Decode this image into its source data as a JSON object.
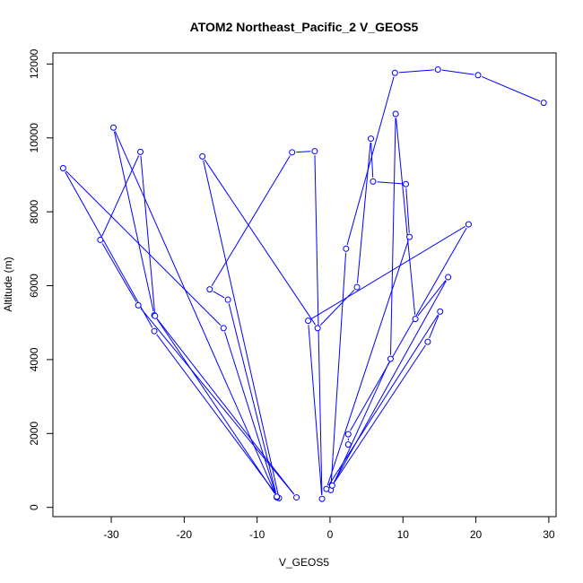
{
  "chart_data": {
    "type": "line",
    "title": "ATOM2 Northeast_Pacific_2 V_GEOS5",
    "xlabel": "V_GEOS5",
    "ylabel": "Altitude (m)",
    "xlim": [
      -38,
      31
    ],
    "ylim": [
      -250,
      12300
    ],
    "xticks": [
      -30,
      -20,
      -10,
      0,
      10,
      20,
      30
    ],
    "yticks": [
      0,
      2000,
      4000,
      6000,
      8000,
      10000,
      12000
    ],
    "xtick_labels": [
      "-30",
      "-20",
      "-10",
      "0",
      "10",
      "20",
      "30"
    ],
    "ytick_labels": [
      "0",
      "2000",
      "4000",
      "6000",
      "8000",
      "10000",
      "12000"
    ],
    "colors": {
      "series": "#0000ff",
      "marker_fill": "#ffffff"
    },
    "grid": false,
    "series": [
      {
        "points": [
          {
            "x": 29.3,
            "y": 10950
          },
          {
            "x": 20.3,
            "y": 11700
          },
          {
            "x": 14.8,
            "y": 11850
          },
          {
            "x": 8.9,
            "y": 11760
          },
          {
            "x": 2.2,
            "y": 7000
          },
          {
            "x": 0.1,
            "y": 470
          },
          {
            "x": 8.3,
            "y": 4020
          },
          {
            "x": 9.0,
            "y": 10650
          },
          {
            "x": 11.7,
            "y": 5100
          },
          {
            "x": 16.2,
            "y": 6230
          },
          {
            "x": 0.3,
            "y": 590
          },
          {
            "x": 13.4,
            "y": 4480
          },
          {
            "x": 15.1,
            "y": 5300
          },
          {
            "x": -0.5,
            "y": 500
          },
          {
            "x": 10.9,
            "y": 7320
          },
          {
            "x": 10.4,
            "y": 8750
          },
          {
            "x": 5.9,
            "y": 8820
          },
          {
            "x": 5.6,
            "y": 9980
          },
          {
            "x": 3.7,
            "y": 5960
          },
          {
            "x": -1.7,
            "y": 4850
          },
          {
            "x": -17.5,
            "y": 9500
          },
          {
            "x": -7.0,
            "y": 250
          },
          {
            "x": -24.1,
            "y": 4770
          },
          {
            "x": -36.6,
            "y": 9180
          },
          {
            "x": -14.6,
            "y": 4850
          },
          {
            "x": -7.3,
            "y": 270
          },
          {
            "x": -29.7,
            "y": 10280
          },
          {
            "x": -24.1,
            "y": 5200
          },
          {
            "x": -4.6,
            "y": 270
          },
          {
            "x": -26.3,
            "y": 5470
          },
          {
            "x": -31.5,
            "y": 7240
          },
          {
            "x": -26.0,
            "y": 9620
          },
          {
            "x": -24.0,
            "y": 5180
          },
          {
            "x": -7.3,
            "y": 290
          },
          {
            "x": -14.0,
            "y": 5620
          },
          {
            "x": -16.5,
            "y": 5900
          },
          {
            "x": -5.2,
            "y": 9610
          },
          {
            "x": -2.1,
            "y": 9640
          },
          {
            "x": -1.1,
            "y": 230
          },
          {
            "x": -3.0,
            "y": 5050
          },
          {
            "x": 19.0,
            "y": 7660
          },
          {
            "x": 2.5,
            "y": 1980
          },
          {
            "x": 2.5,
            "y": 1700
          }
        ]
      }
    ]
  }
}
